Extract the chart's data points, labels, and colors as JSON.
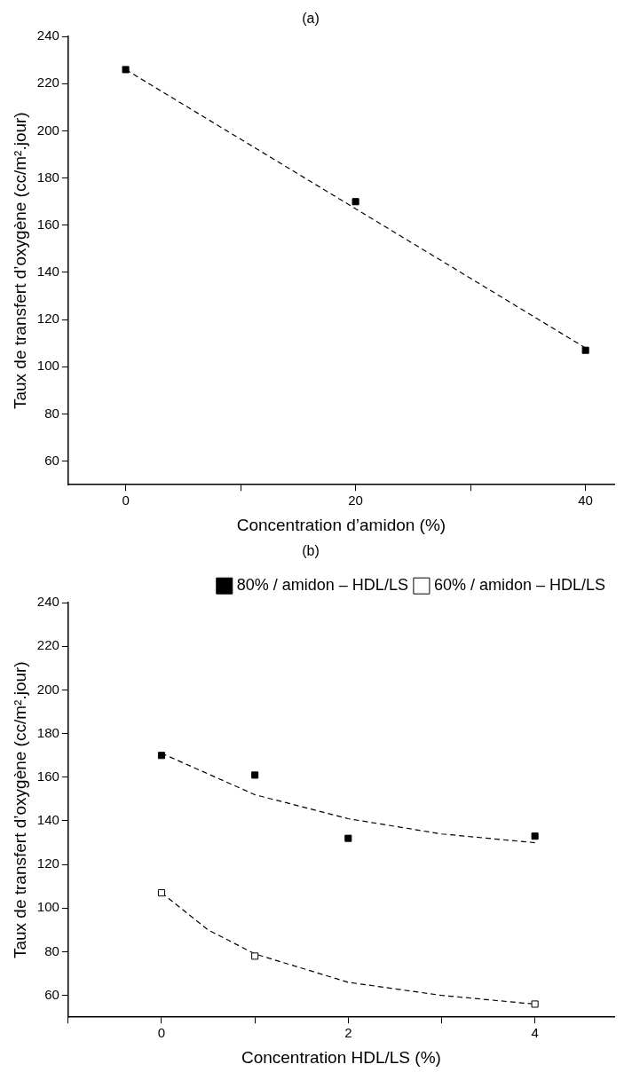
{
  "chart_data": [
    {
      "type": "scatter",
      "title": "(a)",
      "xlabel": "Concentration d’amidon (%)",
      "ylabel": "Taux de transfert d’oxygène (cc/m².jour)",
      "xlim": [
        -5,
        42.5
      ],
      "xticks": [
        0,
        {
          "value": 10,
          "label": null
        },
        20,
        {
          "value": 30,
          "label": null
        },
        40
      ],
      "ylim": [
        50,
        240
      ],
      "yticks": [
        60,
        80,
        100,
        120,
        140,
        160,
        180,
        200,
        220,
        240
      ],
      "grid": false,
      "legend": false,
      "marker": "square",
      "x": [
        0,
        20,
        40
      ],
      "series": [
        {
          "color": "#000000",
          "values": [
            226,
            170,
            107
          ]
        },
        {
          "type": "line",
          "color": "#000000",
          "x": [
            0,
            40
          ],
          "values": [
            226,
            108
          ],
          "marker": "none",
          "line_style": "dashed"
        }
      ]
    },
    {
      "type": "scatter",
      "title": "(b)",
      "xlabel": "Concentration HDL/LS (%)",
      "ylabel": "Taux de transfert d’oxygène (cc/m².jour)",
      "xlim": [
        -1,
        4.85
      ],
      "xticks": [
        {
          "value": -1,
          "label": null
        },
        0,
        {
          "value": 1,
          "label": null
        },
        2,
        {
          "value": 3,
          "label": null
        },
        4
      ],
      "ylim": [
        50,
        240
      ],
      "yticks": [
        60,
        80,
        100,
        120,
        140,
        160,
        180,
        200,
        220,
        240
      ],
      "grid": false,
      "legend": "top right",
      "marker": "square",
      "series": [
        {
          "name": "80% / amidon – HDL/LS",
          "color": "#000000",
          "x": [
            0,
            1,
            2,
            4
          ],
          "values": [
            170,
            161,
            132,
            133
          ]
        },
        {
          "name": "60% / amidon – HDL/LS",
          "color": "#ffffff",
          "x": [
            0,
            1,
            4
          ],
          "values": [
            107,
            78,
            56
          ]
        },
        {
          "type": "line",
          "color": "#000000",
          "x": [
            0,
            1,
            2,
            3,
            4
          ],
          "values": [
            171,
            152,
            141,
            134,
            130
          ],
          "marker": "none",
          "line_style": "dashed"
        },
        {
          "type": "line",
          "color": "#000000",
          "x": [
            0,
            0.5,
            1,
            2,
            3,
            4
          ],
          "values": [
            107,
            90,
            79,
            66,
            60,
            56
          ],
          "marker": "none",
          "line_style": "dashed"
        }
      ]
    }
  ]
}
